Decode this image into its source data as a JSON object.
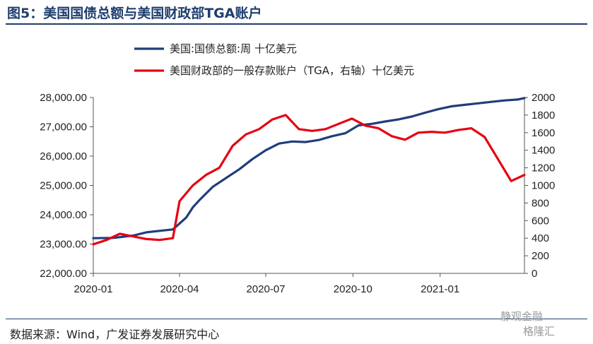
{
  "title": "图5：美国国债总额与美国财政部TGA账户",
  "source": "数据来源：Wind，广发证券发展研究中心",
  "watermark": {
    "line1": "静观金融",
    "line2": "格隆汇"
  },
  "chart_data": {
    "type": "line",
    "legend_position": "top",
    "grid": false,
    "x_ticks": [
      "2020-01",
      "2020-04",
      "2020-07",
      "2020-10",
      "2021-01"
    ],
    "y_left": {
      "ylim": [
        22000,
        28000
      ],
      "ticks": [
        "22,000.00",
        "23,000.00",
        "24,000.00",
        "25,000.00",
        "26,000.00",
        "27,000.00",
        "28,000.00"
      ],
      "tick_values": [
        22000,
        23000,
        24000,
        25000,
        26000,
        27000,
        28000
      ]
    },
    "y_right": {
      "ylim": [
        0,
        2000
      ],
      "ticks": [
        "0",
        "200",
        "400",
        "600",
        "800",
        "1000",
        "1200",
        "1400",
        "1600",
        "1800",
        "2000"
      ],
      "tick_values": [
        0,
        200,
        400,
        600,
        800,
        1000,
        1200,
        1400,
        1600,
        1800,
        2000
      ]
    },
    "series": [
      {
        "name": "美国:国债总额:周 十亿美元",
        "color": "#1f3e7a",
        "axis": "left",
        "x": [
          "2020-01-01",
          "2020-01-22",
          "2020-02-12",
          "2020-02-26",
          "2020-03-11",
          "2020-03-25",
          "2020-04-08",
          "2020-04-15",
          "2020-04-22",
          "2020-05-06",
          "2020-05-20",
          "2020-06-03",
          "2020-06-17",
          "2020-07-01",
          "2020-07-15",
          "2020-07-29",
          "2020-08-12",
          "2020-08-26",
          "2020-09-09",
          "2020-09-23",
          "2020-10-07",
          "2020-10-21",
          "2020-11-04",
          "2020-11-18",
          "2020-12-02",
          "2020-12-16",
          "2020-12-30",
          "2021-01-13",
          "2021-01-27",
          "2021-02-10",
          "2021-02-24",
          "2021-03-10",
          "2021-03-24",
          "2021-03-31"
        ],
        "values": [
          23200,
          23210,
          23290,
          23400,
          23450,
          23500,
          23900,
          24250,
          24500,
          24950,
          25250,
          25550,
          25900,
          26200,
          26430,
          26500,
          26480,
          26550,
          26680,
          26780,
          27050,
          27100,
          27180,
          27250,
          27350,
          27480,
          27600,
          27700,
          27750,
          27800,
          27850,
          27900,
          27930,
          27980
        ]
      },
      {
        "name": "美国财政部的一般存款账户（TGA，右轴）十亿美元",
        "color": "#e60012",
        "axis": "right",
        "x": [
          "2020-01-01",
          "2020-01-15",
          "2020-01-29",
          "2020-02-12",
          "2020-02-26",
          "2020-03-11",
          "2020-03-25",
          "2020-04-01",
          "2020-04-15",
          "2020-04-29",
          "2020-05-13",
          "2020-05-27",
          "2020-06-10",
          "2020-06-24",
          "2020-07-08",
          "2020-07-22",
          "2020-08-05",
          "2020-08-19",
          "2020-09-02",
          "2020-09-16",
          "2020-09-30",
          "2020-10-14",
          "2020-10-28",
          "2020-11-11",
          "2020-11-25",
          "2020-12-09",
          "2020-12-23",
          "2021-01-06",
          "2021-01-20",
          "2021-02-03",
          "2021-02-17",
          "2021-03-03",
          "2021-03-17",
          "2021-03-31"
        ],
        "values": [
          330,
          380,
          450,
          420,
          390,
          380,
          400,
          820,
          1000,
          1120,
          1200,
          1450,
          1580,
          1640,
          1750,
          1800,
          1640,
          1620,
          1640,
          1700,
          1760,
          1680,
          1650,
          1560,
          1520,
          1600,
          1610,
          1600,
          1630,
          1650,
          1550,
          1300,
          1050,
          1120
        ]
      }
    ]
  }
}
